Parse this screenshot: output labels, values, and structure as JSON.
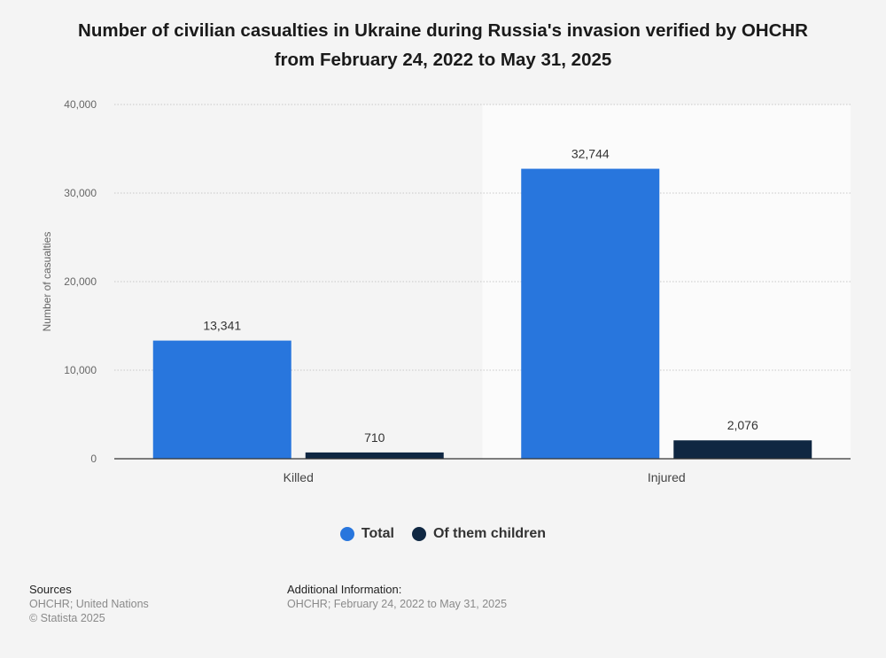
{
  "title_lines": [
    "Number of civilian casualties in Ukraine during Russia's invasion verified by OHCHR",
    "from February 24, 2022 to May 31, 2025"
  ],
  "chart_data": {
    "type": "bar",
    "categories": [
      "Killed",
      "Injured"
    ],
    "series": [
      {
        "name": "Total",
        "color": "#2876dd",
        "values": [
          13341,
          32744
        ],
        "labels": [
          "13,341",
          "32,744"
        ]
      },
      {
        "name": "Of them children",
        "color": "#0f2742",
        "values": [
          710,
          2076
        ],
        "labels": [
          "710",
          "2,076"
        ]
      }
    ],
    "ylabel": "Number of casualties",
    "xlabel": "",
    "ylim": [
      0,
      40000
    ],
    "yticks": [
      0,
      10000,
      20000,
      30000,
      40000
    ],
    "ytick_labels": [
      "0",
      "10,000",
      "20,000",
      "30,000",
      "40,000"
    ],
    "grid": true,
    "highlighted_category": "Injured",
    "legend_position": "bottom"
  },
  "footer": {
    "sources_heading": "Sources",
    "sources_line1": "OHCHR; United Nations",
    "sources_line2": "© Statista 2025",
    "info_heading": "Additional Information:",
    "info_line1": "OHCHR; February 24, 2022 to May 31, 2025"
  }
}
